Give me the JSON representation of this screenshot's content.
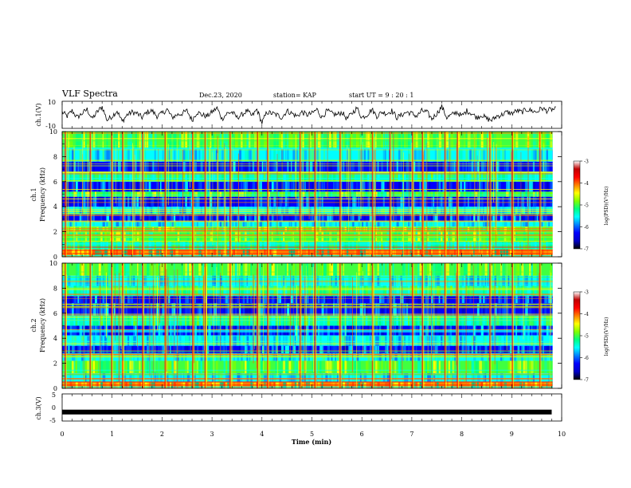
{
  "header": {
    "title": "VLF Spectra",
    "date": "Dec.23, 2020",
    "station": "station= KAP",
    "start": "start UT =  9 : 20 : 1"
  },
  "chart_data": [
    {
      "type": "line",
      "panel": "ch1-waveform",
      "ylabel": "ch.1(V)",
      "ylim": [
        -10,
        10
      ],
      "yticks": [
        "10",
        "-10"
      ],
      "xlim": [
        0,
        10
      ],
      "series": [
        {
          "x": [
            0.0,
            0.1,
            0.2,
            0.3,
            0.4,
            0.5,
            0.6,
            0.7,
            0.8,
            0.9,
            1.0,
            1.1,
            1.2,
            1.3,
            1.4,
            1.5,
            1.6,
            1.7,
            1.8,
            1.9,
            2.0,
            2.1,
            2.2,
            2.3,
            2.4,
            2.5,
            2.6,
            2.7,
            2.8,
            2.9,
            3.0,
            3.1,
            3.2,
            3.3,
            3.4,
            3.5,
            3.6,
            3.7,
            3.8,
            3.9,
            4.0,
            4.1,
            4.2,
            4.3,
            4.4,
            4.5,
            4.6,
            4.7,
            4.8,
            4.9,
            5.0,
            5.1,
            5.2,
            5.3,
            5.4,
            5.5,
            5.6,
            5.7,
            5.8,
            5.9,
            6.0,
            6.1,
            6.2,
            6.3,
            6.4,
            6.5,
            6.6,
            6.7,
            6.8,
            6.9,
            7.0,
            7.1,
            7.2,
            7.3,
            7.4,
            7.5,
            7.6,
            7.7,
            7.8,
            7.9,
            8.0,
            8.1,
            8.2,
            8.3,
            8.4,
            8.5,
            8.6,
            8.7,
            8.8,
            8.9,
            9.0,
            9.1,
            9.2,
            9.3,
            9.4,
            9.5,
            9.6,
            9.7,
            9.8
          ],
          "values": [
            2,
            -1,
            3,
            -2,
            1,
            4,
            -3,
            2,
            6,
            -4,
            -1,
            3,
            -5,
            0,
            2,
            1,
            -2,
            2,
            3,
            -1,
            1,
            4,
            -2,
            0,
            1,
            3,
            -4,
            2,
            0,
            -1,
            2,
            5,
            -3,
            1,
            2,
            -2,
            0,
            3,
            -1,
            4,
            -6,
            2,
            1,
            0,
            -2,
            3,
            1,
            -1,
            2,
            0,
            1,
            4,
            -2,
            3,
            1,
            0,
            2,
            -3,
            1,
            5,
            -2,
            0,
            4,
            -1,
            2,
            1,
            3,
            -2,
            0,
            2,
            1,
            -1,
            3,
            2,
            -3,
            1,
            6,
            -2,
            0,
            2,
            -1,
            3,
            1,
            -2,
            0,
            -3,
            -4,
            -1,
            0,
            2,
            1,
            3,
            2,
            4,
            3,
            2,
            5,
            3,
            4
          ]
        }
      ]
    },
    {
      "type": "heatmap",
      "panel": "ch1-spectrogram",
      "ylabel": "ch.1 Frequency (kHz)",
      "ylim": [
        0,
        10
      ],
      "yticks": [
        "0",
        "2",
        "4",
        "6",
        "8",
        "10"
      ],
      "xlim": [
        0,
        10
      ],
      "colorbar": {
        "label": "log(PSD)(V²/Hz)",
        "ticks": [
          "-3",
          "-4",
          "-5",
          "-6",
          "-7"
        ],
        "range": [
          -7,
          -3
        ],
        "colors": [
          "#000000",
          "#0000c8",
          "#0000ff",
          "#0080ff",
          "#00ffff",
          "#00ff80",
          "#80ff00",
          "#ffff00",
          "#ff8000",
          "#ff0000",
          "#c00000",
          "#ffffff"
        ]
      },
      "bands_khz": [
        {
          "from": 0.0,
          "to": 0.6,
          "level": "orange"
        },
        {
          "from": 0.6,
          "to": 1.2,
          "level": "cyan-green"
        },
        {
          "from": 1.2,
          "to": 2.0,
          "level": "green"
        },
        {
          "from": 2.0,
          "to": 2.4,
          "level": "green"
        },
        {
          "from": 2.4,
          "to": 2.8,
          "level": "cyan"
        },
        {
          "from": 2.8,
          "to": 3.4,
          "level": "blue"
        },
        {
          "from": 3.4,
          "to": 4.0,
          "level": "cyan"
        },
        {
          "from": 4.0,
          "to": 4.8,
          "level": "blue"
        },
        {
          "from": 4.8,
          "to": 5.2,
          "level": "green"
        },
        {
          "from": 5.2,
          "to": 6.0,
          "level": "blue"
        },
        {
          "from": 6.0,
          "to": 6.8,
          "level": "cyan-green"
        },
        {
          "from": 6.8,
          "to": 7.6,
          "level": "blue"
        },
        {
          "from": 7.6,
          "to": 8.6,
          "level": "cyan"
        },
        {
          "from": 8.6,
          "to": 10.0,
          "level": "green"
        }
      ],
      "spikes_min": [
        0.05,
        0.55,
        0.98,
        1.2,
        1.6,
        2.05,
        2.6,
        2.85,
        3.35,
        3.9,
        4.1,
        4.75,
        5.05,
        5.55,
        6.2,
        6.55,
        7.0,
        7.2,
        7.65,
        7.9,
        8.55,
        9.0,
        9.55
      ]
    },
    {
      "type": "heatmap",
      "panel": "ch2-spectrogram",
      "ylabel": "ch.2 Frequency (kHz)",
      "ylim": [
        0,
        10
      ],
      "yticks": [
        "0",
        "2",
        "4",
        "6",
        "8",
        "10"
      ],
      "xlim": [
        0,
        10
      ],
      "colorbar": {
        "label": "log(PSD)(V²/Hz)",
        "ticks": [
          "-3",
          "-4",
          "-5",
          "-6",
          "-7"
        ],
        "range": [
          -7,
          -3
        ]
      },
      "bands_khz": [
        {
          "from": 0.0,
          "to": 0.5,
          "level": "orange"
        },
        {
          "from": 0.5,
          "to": 1.2,
          "level": "cyan"
        },
        {
          "from": 1.2,
          "to": 2.2,
          "level": "green"
        },
        {
          "from": 2.2,
          "to": 2.8,
          "level": "cyan"
        },
        {
          "from": 2.8,
          "to": 3.4,
          "level": "blue"
        },
        {
          "from": 3.4,
          "to": 4.2,
          "level": "cyan"
        },
        {
          "from": 4.2,
          "to": 5.0,
          "level": "blue"
        },
        {
          "from": 5.0,
          "to": 5.8,
          "level": "cyan-green"
        },
        {
          "from": 5.8,
          "to": 6.8,
          "level": "blue"
        },
        {
          "from": 6.8,
          "to": 7.4,
          "level": "blue"
        },
        {
          "from": 7.4,
          "to": 8.2,
          "level": "cyan-green"
        },
        {
          "from": 8.2,
          "to": 9.0,
          "level": "cyan"
        },
        {
          "from": 9.0,
          "to": 10.0,
          "level": "green"
        }
      ],
      "spikes_min": [
        0.05,
        0.55,
        0.98,
        1.2,
        1.6,
        2.05,
        2.6,
        2.85,
        3.35,
        3.9,
        4.1,
        4.75,
        5.05,
        5.55,
        6.2,
        6.55,
        7.0,
        7.2,
        7.65,
        7.9,
        8.55,
        9.0,
        9.55
      ]
    },
    {
      "type": "line",
      "panel": "ch3-waveform",
      "ylabel": "ch.3(V)",
      "ylim": [
        -5,
        5
      ],
      "yticks": [
        "5",
        "0",
        "-5"
      ],
      "xlim": [
        0,
        10
      ],
      "xlabel": "Time (min)",
      "xticks": [
        "0",
        "1",
        "2",
        "3",
        "4",
        "5",
        "6",
        "7",
        "8",
        "9",
        "10"
      ],
      "series": [
        {
          "x": [
            0,
            9.8
          ],
          "values": [
            -1.7,
            -1.7
          ]
        }
      ]
    }
  ]
}
